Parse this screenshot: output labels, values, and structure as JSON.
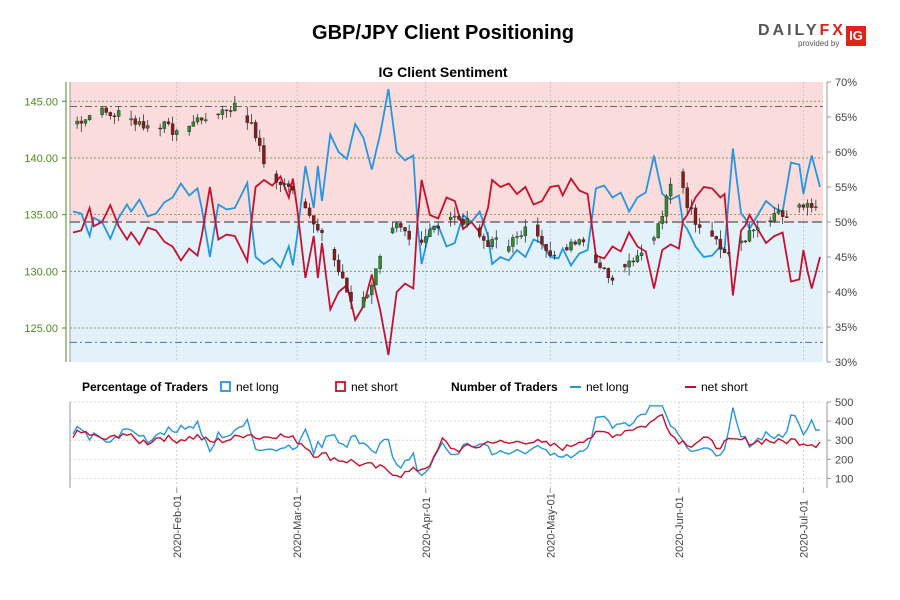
{
  "chart_data": {
    "type": "candlestick+line",
    "title": "GBP/JPY Client Positioning",
    "subtitle": "IG Client Sentiment",
    "logo": {
      "word_a": "DAILY",
      "word_b": "FX",
      "provided_by": "provided by",
      "badge": "IG"
    },
    "price_axis": {
      "ticks": [
        "145.00",
        "140.00",
        "135.00",
        "130.00",
        "125.00"
      ],
      "values": [
        145,
        140,
        135,
        130,
        125
      ],
      "range": [
        122,
        146.7
      ],
      "color": "#4e8a1e"
    },
    "pct_axis": {
      "ticks": [
        "70%",
        "65%",
        "60%",
        "55%",
        "50%",
        "45%",
        "40%",
        "35%",
        "30%"
      ],
      "values": [
        70,
        65,
        60,
        55,
        50,
        45,
        40,
        35,
        30
      ],
      "range": [
        30,
        70
      ]
    },
    "traders_axis": {
      "ticks": [
        "500",
        "400",
        "300",
        "200",
        "100"
      ],
      "values": [
        500,
        400,
        300,
        200,
        100
      ],
      "range": [
        50,
        500
      ]
    },
    "date_ticks": [
      "2020-Feb-01",
      "2020-Mar-01",
      "2020-Apr-01",
      "2020-May-01",
      "2020-Jun-01",
      "2020-Jul-01"
    ],
    "date_tick_days": [
      25,
      54,
      85,
      115,
      146,
      176
    ],
    "day_count": 181,
    "legend": {
      "pct_title": "Percentage of Traders",
      "pct_long": "net long",
      "pct_short": "net short",
      "num_title": "Number of Traders",
      "num_long": "net long",
      "num_short": "net short"
    },
    "colors": {
      "long": "#2596e0",
      "short": "#c8102e",
      "short_fill": "#fadcdc",
      "long_fill": "#e3f1fb",
      "candle_up": "#2e8b2e",
      "candle_down": "#8b1a1a"
    },
    "reference_lines": {
      "upper_pct": 66.5,
      "lower_pct": 32.8,
      "mid_pct": 50
    },
    "net_long_pct_keys": [
      [
        0,
        51.5
      ],
      [
        2,
        51.2
      ],
      [
        4,
        48.0
      ],
      [
        5,
        50.6
      ],
      [
        7,
        50.0
      ],
      [
        9,
        47.6
      ],
      [
        11,
        50.6
      ],
      [
        13,
        52.5
      ],
      [
        14,
        51.5
      ],
      [
        16,
        53.2
      ],
      [
        18,
        50.8
      ],
      [
        20,
        51.2
      ],
      [
        22,
        52.8
      ],
      [
        24,
        53.5
      ],
      [
        26,
        55.5
      ],
      [
        28,
        53.8
      ],
      [
        30,
        54.8
      ],
      [
        31,
        52.0
      ],
      [
        33,
        45.0
      ],
      [
        35,
        52.5
      ],
      [
        37,
        51.8
      ],
      [
        39,
        52.0
      ],
      [
        42,
        55.6
      ],
      [
        43,
        50.0
      ],
      [
        44,
        45.0
      ],
      [
        46,
        44.0
      ],
      [
        48,
        44.8
      ],
      [
        50,
        43.5
      ],
      [
        52,
        46.5
      ],
      [
        53,
        43.8
      ],
      [
        54,
        48.0
      ],
      [
        56,
        58.0
      ],
      [
        58,
        52.0
      ],
      [
        59,
        58.0
      ],
      [
        60,
        53.0
      ],
      [
        62,
        62.5
      ],
      [
        64,
        60.0
      ],
      [
        66,
        59.0
      ],
      [
        68,
        64.0
      ],
      [
        70,
        62.0
      ],
      [
        72,
        57.5
      ],
      [
        74,
        62.5
      ],
      [
        76,
        69.0
      ],
      [
        78,
        60.0
      ],
      [
        80,
        58.8
      ],
      [
        82,
        59.5
      ],
      [
        83,
        50.0
      ],
      [
        84,
        44.0
      ],
      [
        86,
        49.0
      ],
      [
        88,
        49.5
      ],
      [
        90,
        46.5
      ],
      [
        92,
        47.0
      ],
      [
        94,
        51.0
      ],
      [
        96,
        50.0
      ],
      [
        98,
        51.5
      ],
      [
        100,
        48.0
      ],
      [
        101,
        44.0
      ],
      [
        103,
        45.0
      ],
      [
        105,
        44.5
      ],
      [
        107,
        46.0
      ],
      [
        109,
        45.0
      ],
      [
        111,
        47.5
      ],
      [
        113,
        47.0
      ],
      [
        115,
        45.0
      ],
      [
        117,
        44.8
      ],
      [
        118,
        46.2
      ],
      [
        120,
        43.8
      ],
      [
        122,
        45.5
      ],
      [
        124,
        46.0
      ],
      [
        126,
        54.8
      ],
      [
        128,
        55.2
      ],
      [
        130,
        53.5
      ],
      [
        132,
        54.2
      ],
      [
        134,
        51.5
      ],
      [
        136,
        53.5
      ],
      [
        138,
        54.2
      ],
      [
        140,
        59.5
      ],
      [
        142,
        54.0
      ],
      [
        144,
        53.2
      ],
      [
        146,
        53.8
      ],
      [
        147,
        49.8
      ],
      [
        148,
        49.0
      ],
      [
        150,
        46.5
      ],
      [
        152,
        45.0
      ],
      [
        154,
        45.2
      ],
      [
        156,
        46.5
      ],
      [
        157,
        46.0
      ],
      [
        159,
        60.5
      ],
      [
        161,
        51.2
      ],
      [
        162,
        50.5
      ],
      [
        163,
        49.0
      ],
      [
        165,
        51.0
      ],
      [
        167,
        53.0
      ],
      [
        169,
        52.0
      ],
      [
        171,
        51.5
      ],
      [
        173,
        58.5
      ],
      [
        175,
        58.2
      ],
      [
        176,
        54.0
      ],
      [
        177,
        57.0
      ],
      [
        178,
        59.5
      ],
      [
        180,
        55.0
      ]
    ],
    "short_num_keys": [
      [
        0,
        330
      ],
      [
        3,
        340
      ],
      [
        6,
        310
      ],
      [
        9,
        305
      ],
      [
        12,
        340
      ],
      [
        15,
        300
      ],
      [
        18,
        290
      ],
      [
        21,
        320
      ],
      [
        24,
        300
      ],
      [
        27,
        310
      ],
      [
        30,
        320
      ],
      [
        33,
        290
      ],
      [
        36,
        300
      ],
      [
        39,
        310
      ],
      [
        42,
        340
      ],
      [
        45,
        310
      ],
      [
        48,
        330
      ],
      [
        51,
        320
      ],
      [
        54,
        300
      ],
      [
        56,
        270
      ],
      [
        58,
        230
      ],
      [
        61,
        220
      ],
      [
        64,
        200
      ],
      [
        67,
        190
      ],
      [
        70,
        170
      ],
      [
        73,
        160
      ],
      [
        76,
        140
      ],
      [
        79,
        120
      ],
      [
        82,
        140
      ],
      [
        85,
        160
      ],
      [
        87,
        200
      ],
      [
        89,
        300
      ],
      [
        92,
        250
      ],
      [
        95,
        260
      ],
      [
        98,
        270
      ],
      [
        101,
        300
      ],
      [
        104,
        280
      ],
      [
        107,
        290
      ],
      [
        110,
        300
      ],
      [
        113,
        280
      ],
      [
        116,
        270
      ],
      [
        119,
        260
      ],
      [
        122,
        300
      ],
      [
        125,
        320
      ],
      [
        128,
        340
      ],
      [
        131,
        330
      ],
      [
        134,
        360
      ],
      [
        137,
        370
      ],
      [
        140,
        400
      ],
      [
        142,
        450
      ],
      [
        144,
        330
      ],
      [
        146,
        300
      ],
      [
        149,
        280
      ],
      [
        152,
        310
      ],
      [
        155,
        270
      ],
      [
        158,
        290
      ],
      [
        161,
        300
      ],
      [
        164,
        290
      ],
      [
        167,
        300
      ],
      [
        170,
        290
      ],
      [
        173,
        300
      ],
      [
        176,
        290
      ],
      [
        179,
        280
      ],
      [
        180,
        300
      ]
    ],
    "price_keys": [
      [
        0,
        143.0
      ],
      [
        3,
        143.6
      ],
      [
        6,
        144.2
      ],
      [
        9,
        143.8
      ],
      [
        12,
        144.0
      ],
      [
        15,
        143.2
      ],
      [
        18,
        142.8
      ],
      [
        21,
        143.0
      ],
      [
        24,
        142.4
      ],
      [
        27,
        142.6
      ],
      [
        30,
        143.4
      ],
      [
        33,
        143.8
      ],
      [
        36,
        144.2
      ],
      [
        39,
        144.6
      ],
      [
        42,
        143.5
      ],
      [
        44,
        142.0
      ],
      [
        46,
        139.5
      ],
      [
        48,
        138.5
      ],
      [
        50,
        137.4
      ],
      [
        52,
        137.8
      ],
      [
        54,
        137.0
      ],
      [
        56,
        136.0
      ],
      [
        58,
        134.0
      ],
      [
        60,
        133.0
      ],
      [
        62,
        132.0
      ],
      [
        64,
        130.0
      ],
      [
        66,
        128.2
      ],
      [
        68,
        126.6
      ],
      [
        70,
        127.5
      ],
      [
        72,
        129.0
      ],
      [
        74,
        131.0
      ],
      [
        76,
        133.0
      ],
      [
        78,
        134.0
      ],
      [
        80,
        133.5
      ],
      [
        82,
        133.0
      ],
      [
        84,
        132.8
      ],
      [
        86,
        133.5
      ],
      [
        88,
        134.0
      ],
      [
        90,
        135.0
      ],
      [
        92,
        134.8
      ],
      [
        94,
        134.5
      ],
      [
        96,
        134.0
      ],
      [
        98,
        133.0
      ],
      [
        100,
        132.5
      ],
      [
        102,
        132.6
      ],
      [
        104,
        132.2
      ],
      [
        106,
        132.8
      ],
      [
        108,
        133.0
      ],
      [
        110,
        134.2
      ],
      [
        112,
        133.4
      ],
      [
        114,
        132.2
      ],
      [
        116,
        131.4
      ],
      [
        118,
        131.8
      ],
      [
        120,
        132.6
      ],
      [
        122,
        133.0
      ],
      [
        124,
        132.2
      ],
      [
        126,
        131.0
      ],
      [
        128,
        130.0
      ],
      [
        130,
        129.5
      ],
      [
        132,
        130.5
      ],
      [
        134,
        131.0
      ],
      [
        136,
        131.4
      ],
      [
        138,
        132.0
      ],
      [
        140,
        133.0
      ],
      [
        142,
        135.0
      ],
      [
        144,
        137.5
      ],
      [
        146,
        139.0
      ],
      [
        148,
        136.0
      ],
      [
        150,
        134.5
      ],
      [
        152,
        134.0
      ],
      [
        154,
        133.5
      ],
      [
        156,
        132.0
      ],
      [
        158,
        131.5
      ],
      [
        160,
        132.5
      ],
      [
        162,
        133.0
      ],
      [
        164,
        133.5
      ],
      [
        166,
        134.2
      ],
      [
        168,
        134.4
      ],
      [
        170,
        135.0
      ],
      [
        172,
        134.8
      ],
      [
        174,
        135.4
      ],
      [
        176,
        135.6
      ],
      [
        178,
        135.5
      ],
      [
        180,
        135.3
      ]
    ]
  }
}
